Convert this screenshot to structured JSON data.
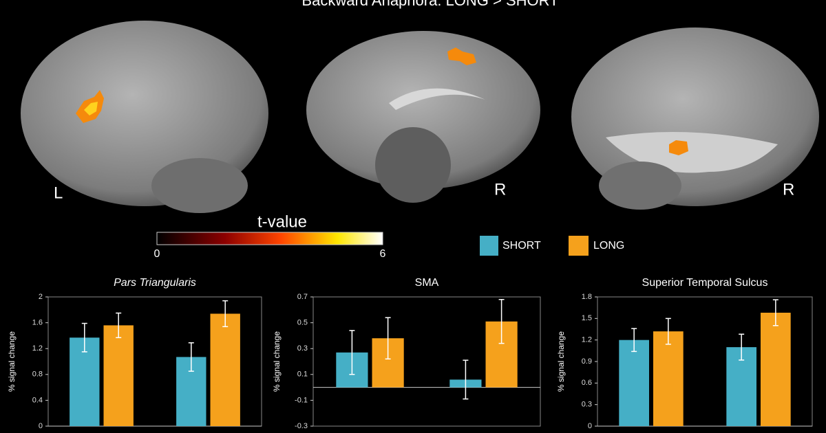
{
  "title": "Backward Anaphora: LONG > SHORT",
  "brain_labels": [
    "L",
    "R",
    "R"
  ],
  "colorbar": {
    "label": "t-value",
    "min": 0,
    "max": 6
  },
  "chart_data": [
    {
      "type": "bar",
      "title": "Pars Triangularis",
      "title_italic": true,
      "ylabel": "% signal change",
      "categories": [
        null,
        null
      ],
      "ylim": [
        0,
        2
      ],
      "yticks": [
        0,
        0.4,
        0.8,
        1.2,
        1.6,
        2
      ],
      "series": [
        {
          "name": "SHORT",
          "color": "#45afc6",
          "values": [
            1.37,
            1.07
          ],
          "errors": [
            0.22,
            0.22
          ]
        },
        {
          "name": "LONG",
          "color": "#f5a11c",
          "values": [
            1.56,
            1.74
          ],
          "errors": [
            0.19,
            0.2
          ]
        }
      ]
    },
    {
      "type": "bar",
      "title": "SMA",
      "title_italic": false,
      "ylabel": "% signal change",
      "categories": [
        null,
        null
      ],
      "ylim": [
        -0.3,
        0.7
      ],
      "yticks": [
        -0.3,
        -0.1,
        0.1,
        0.3,
        0.5,
        0.7
      ],
      "series": [
        {
          "name": "SHORT",
          "color": "#45afc6",
          "values": [
            0.27,
            0.06
          ],
          "errors": [
            0.17,
            0.15
          ]
        },
        {
          "name": "LONG",
          "color": "#f5a11c",
          "values": [
            0.38,
            0.51
          ],
          "errors": [
            0.16,
            0.17
          ]
        }
      ]
    },
    {
      "type": "bar",
      "title": "Superior Temporal Sulcus",
      "title_italic": false,
      "ylabel": "% signal change",
      "categories": [
        null,
        null
      ],
      "ylim": [
        0,
        1.8
      ],
      "yticks": [
        0,
        0.3,
        0.6,
        0.9,
        1.2,
        1.5,
        1.8
      ],
      "series": [
        {
          "name": "SHORT",
          "color": "#45afc6",
          "values": [
            1.2,
            1.1
          ],
          "errors": [
            0.16,
            0.18
          ]
        },
        {
          "name": "LONG",
          "color": "#f5a11c",
          "values": [
            1.32,
            1.58
          ],
          "errors": [
            0.18,
            0.18
          ]
        }
      ]
    }
  ]
}
